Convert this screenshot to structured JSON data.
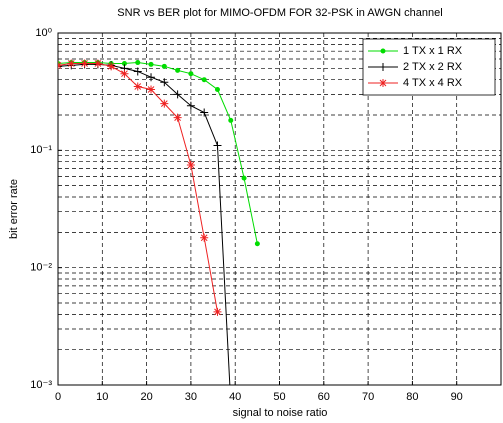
{
  "chart_data": {
    "type": "line",
    "title": "SNR vs BER plot for MIMO-OFDM FOR 32-PSK in AWGN channel",
    "x_label": "signal to noise ratio",
    "y_label": "bit error rate",
    "xlim": [
      0,
      100
    ],
    "xticks": [
      0,
      10,
      20,
      30,
      40,
      50,
      60,
      70,
      80,
      90
    ],
    "ylim": [
      0.001,
      1
    ],
    "y_scale": "log",
    "yticks": [
      {
        "value": 0.001,
        "label": "10⁻³"
      },
      {
        "value": 0.01,
        "label": "10⁻²"
      },
      {
        "value": 0.1,
        "label": "10⁻¹"
      },
      {
        "value": 1,
        "label": "10⁰"
      }
    ],
    "yminorticks": [
      0.002,
      0.003,
      0.004,
      0.005,
      0.006,
      0.007,
      0.008,
      0.009,
      0.02,
      0.03,
      0.04,
      0.05,
      0.06,
      0.07,
      0.08,
      0.09,
      0.2,
      0.3,
      0.4,
      0.5,
      0.6,
      0.7,
      0.8,
      0.9
    ],
    "grid": true,
    "legend": "northeast",
    "series": [
      {
        "name": "1 TX x 1 RX",
        "color": "#00dd00",
        "marker": "dot",
        "x": [
          0,
          3,
          6,
          9,
          12,
          15,
          18,
          21,
          24,
          27,
          30,
          33,
          36,
          39,
          42,
          45
        ],
        "values": [
          0.55,
          0.56,
          0.56,
          0.56,
          0.55,
          0.55,
          0.56,
          0.54,
          0.52,
          0.48,
          0.45,
          0.4,
          0.33,
          0.18,
          0.058,
          0.016
        ]
      },
      {
        "name": "2 TX x 2 RX",
        "color": "#000000",
        "marker": "plus",
        "x": [
          0,
          3,
          6,
          9,
          12,
          15,
          18,
          21,
          24,
          27,
          30,
          33,
          36,
          39
        ],
        "values": [
          0.52,
          0.53,
          0.54,
          0.54,
          0.53,
          0.5,
          0.47,
          0.42,
          0.38,
          0.3,
          0.24,
          0.21,
          0.11,
          0.0007
        ]
      },
      {
        "name": "4 TX x 4 RX",
        "color": "#ee2222",
        "marker": "star",
        "x": [
          0,
          3,
          6,
          9,
          12,
          15,
          18,
          21,
          24,
          27,
          30,
          33,
          36
        ],
        "values": [
          0.53,
          0.55,
          0.55,
          0.55,
          0.52,
          0.45,
          0.35,
          0.33,
          0.25,
          0.19,
          0.075,
          0.018,
          0.0042
        ]
      }
    ]
  }
}
